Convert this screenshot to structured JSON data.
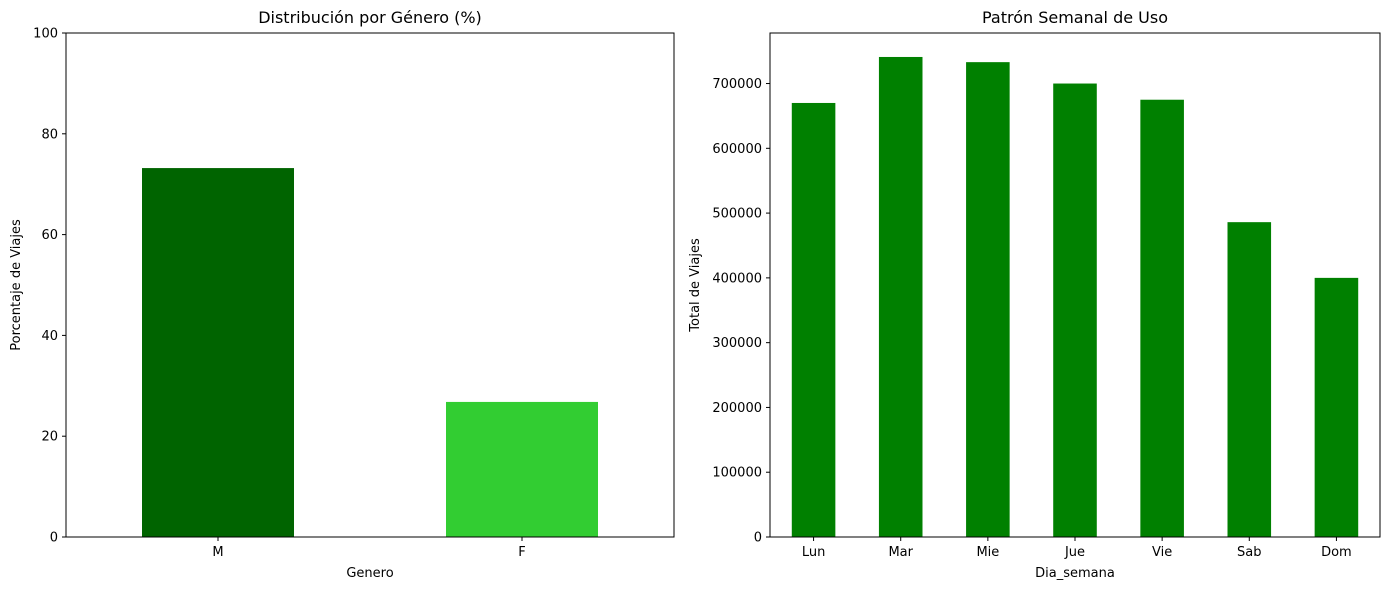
{
  "chart_data": [
    {
      "type": "bar",
      "title": "Distribución por Género (%)",
      "xlabel": "Genero",
      "ylabel": "Porcentaje de Viajes",
      "categories": [
        "M",
        "F"
      ],
      "values": [
        73.2,
        26.8
      ],
      "colors": [
        "#006400",
        "#32cd32"
      ],
      "ylim": [
        0,
        100
      ],
      "yticks": [
        0,
        20,
        40,
        60,
        80,
        100
      ],
      "grid": false
    },
    {
      "type": "bar",
      "title": "Patrón Semanal de Uso",
      "xlabel": "Dia_semana",
      "ylabel": "Total de Viajes",
      "categories": [
        "Lun",
        "Mar",
        "Mie",
        "Jue",
        "Vie",
        "Sab",
        "Dom"
      ],
      "values": [
        670000,
        741000,
        733000,
        700000,
        675000,
        486000,
        400000
      ],
      "colors": [
        "#008000"
      ],
      "ylim": [
        0,
        778000
      ],
      "yticks": [
        0,
        100000,
        200000,
        300000,
        400000,
        500000,
        600000,
        700000
      ],
      "grid": false
    }
  ]
}
